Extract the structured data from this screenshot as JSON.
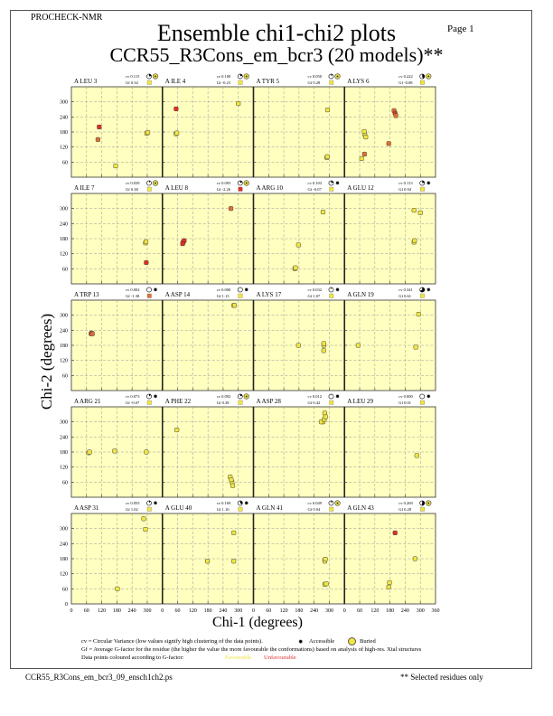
{
  "header": {
    "program": "PROCHECK-NMR",
    "page": "Page  1",
    "title": "Ensemble chi1-chi2 plots",
    "subtitle": "CCR55_R3Cons_em_bcr3 (20 models)**"
  },
  "colors": {
    "panel_bg": "#ffffc0",
    "favourable": "#f2e640",
    "unfavourable": "#e03020",
    "orange": "#e07030"
  },
  "chart_data": {
    "type": "scatter",
    "xlabel": "Chi-1 (degrees)",
    "ylabel": "Chi-2 (degrees)",
    "xlim": [
      0,
      360
    ],
    "ylim": [
      0,
      360
    ],
    "xticks": [
      "0",
      "60",
      "120",
      "180",
      "240",
      "300"
    ],
    "xtick_last": "360",
    "yticks": [
      "60",
      "120",
      "180",
      "240",
      "300"
    ],
    "ytick_zero": "0",
    "grid": true,
    "panels": [
      {
        "residue": "A LEU 3",
        "cv": "cv 0.115",
        "gf": "Gf 0.34",
        "access": "buried",
        "gfcolor": "fav",
        "points": [
          [
            110,
            200,
            "u"
          ],
          [
            105,
            150,
            "o"
          ],
          [
            175,
            45,
            "f"
          ],
          [
            298,
            175,
            "f"
          ],
          [
            302,
            178,
            "f"
          ]
        ]
      },
      {
        "residue": "A ILE 4",
        "cv": "cv 0.100",
        "gf": "Gf -0.23",
        "access": "buried",
        "gfcolor": "fav",
        "points": [
          [
            54,
            272,
            "u"
          ],
          [
            54,
            173,
            "f"
          ],
          [
            57,
            176,
            "f"
          ],
          [
            300,
            293,
            "f"
          ]
        ]
      },
      {
        "residue": "A TYR 5",
        "cv": "cv 0.050",
        "gf": "Gf 0.28",
        "access": "buried",
        "gfcolor": "fav",
        "points": [
          [
            293,
            268,
            "f"
          ],
          [
            290,
            78,
            "f"
          ],
          [
            292,
            82,
            "f"
          ]
        ]
      },
      {
        "residue": "A LYS 6",
        "cv": "cv 0.222",
        "gf": "Gf -0.08",
        "access": "buried",
        "gfcolor": "fav",
        "points": [
          [
            80,
            170,
            "f"
          ],
          [
            78,
            182,
            "f"
          ],
          [
            84,
            160,
            "f"
          ],
          [
            79,
            92,
            "o"
          ],
          [
            68,
            74,
            "f"
          ],
          [
            175,
            134,
            "o"
          ],
          [
            196,
            265,
            "o"
          ],
          [
            200,
            255,
            "u"
          ],
          [
            203,
            245,
            "o"
          ]
        ]
      },
      {
        "residue": "A ILE 7",
        "cv": "cv 0.039",
        "gf": "Gf 0.38",
        "access": "buried",
        "gfcolor": "fav",
        "points": [
          [
            293,
            163,
            "f"
          ],
          [
            295,
            168,
            "f"
          ],
          [
            296,
            85,
            "u"
          ]
        ]
      },
      {
        "residue": "A LEU 8",
        "cv": "cv 0.093",
        "gf": "Gf -2.26",
        "access": "buried",
        "gfcolor": "unfav",
        "points": [
          [
            82,
            166,
            "u"
          ],
          [
            86,
            172,
            "u"
          ],
          [
            80,
            160,
            "u"
          ],
          [
            271,
            300,
            "o"
          ]
        ]
      },
      {
        "residue": "A ARG 10",
        "cv": "cv 0.103",
        "gf": "Gf -0.07",
        "access": "accessible",
        "gfcolor": "fav",
        "points": [
          [
            178,
            155,
            "f"
          ],
          [
            164,
            60,
            "f"
          ],
          [
            166,
            64,
            "f"
          ],
          [
            275,
            286,
            "f"
          ]
        ]
      },
      {
        "residue": "A GLU 12",
        "cv": "cv 0.113",
        "gf": "Gf 0.94",
        "access": "accessible",
        "gfcolor": "fav",
        "points": [
          [
            275,
            166,
            "f"
          ],
          [
            277,
            172,
            "f"
          ],
          [
            275,
            293,
            "f"
          ],
          [
            300,
            283,
            "f"
          ]
        ]
      },
      {
        "residue": "A TRP 13",
        "cv": "cv 0.002",
        "gf": "Gf -1.38",
        "access": "accessible",
        "gfcolor": "orange",
        "points": [
          [
            78,
            226,
            "o"
          ],
          [
            80,
            229,
            "u"
          ],
          [
            83,
            226,
            "o"
          ]
        ]
      },
      {
        "residue": "A ASP 14",
        "cv": "cv 0.000",
        "gf": "Gf 1.13",
        "access": "accessible",
        "gfcolor": "fav",
        "points": [
          [
            282,
            339,
            "f"
          ],
          [
            285,
            339,
            "f"
          ]
        ]
      },
      {
        "residue": "A LYS 17",
        "cv": "cv 0.032",
        "gf": "Gf 1.07",
        "access": "accessible",
        "gfcolor": "fav",
        "points": [
          [
            178,
            180,
            "f"
          ],
          [
            278,
            180,
            "f"
          ],
          [
            278,
            187,
            "f"
          ],
          [
            278,
            159,
            "f"
          ]
        ]
      },
      {
        "residue": "A GLN 19",
        "cv": "cv 0.341",
        "gf": "Gf 0.61",
        "access": "accessible",
        "gfcolor": "fav",
        "points": [
          [
            54,
            180,
            "f"
          ],
          [
            282,
            173,
            "f"
          ],
          [
            293,
            304,
            "f"
          ]
        ]
      },
      {
        "residue": "A ARG 21",
        "cv": "cv 0.073",
        "gf": "Gf -0.07",
        "access": "accessible",
        "gfcolor": "fav",
        "points": [
          [
            68,
            177,
            "f"
          ],
          [
            72,
            180,
            "f"
          ],
          [
            171,
            184,
            "f"
          ],
          [
            296,
            180,
            "f"
          ]
        ]
      },
      {
        "residue": "A PHE 22",
        "cv": "cv 0.092",
        "gf": "Gf 0.38",
        "access": "buried",
        "gfcolor": "fav",
        "points": [
          [
            57,
            268,
            "f"
          ],
          [
            275,
            60,
            "f"
          ],
          [
            278,
            46,
            "f"
          ],
          [
            268,
            81,
            "f"
          ],
          [
            272,
            70,
            "f"
          ]
        ]
      },
      {
        "residue": "A ASP 28",
        "cv": "cv 0.012",
        "gf": "Gf 0.42",
        "access": "accessible",
        "gfcolor": "fav",
        "points": [
          [
            275,
            300,
            "f"
          ],
          [
            282,
            335,
            "f"
          ],
          [
            268,
            300,
            "f"
          ],
          [
            280,
            310,
            "f"
          ],
          [
            285,
            320,
            "f"
          ]
        ]
      },
      {
        "residue": "A LEU 29",
        "cv": "cv 0.000",
        "gf": "Gf 0.01",
        "access": "accessible",
        "gfcolor": "fav",
        "points": [
          [
            286,
            166,
            "f"
          ]
        ]
      },
      {
        "residue": "A ASP 31",
        "cv": "cv 0.055",
        "gf": "Gf 1.02",
        "access": "accessible",
        "gfcolor": "fav",
        "points": [
          [
            286,
            339,
            "f"
          ],
          [
            293,
            297,
            "f"
          ],
          [
            182,
            60,
            "f"
          ]
        ]
      },
      {
        "residue": "A GLU 40",
        "cv": "cv 0.169",
        "gf": "Gf 1.10",
        "access": "accessible",
        "gfcolor": "fav",
        "points": [
          [
            178,
            170,
            "f"
          ],
          [
            282,
            283,
            "f"
          ],
          [
            282,
            170,
            "f"
          ]
        ]
      },
      {
        "residue": "A GLN 41",
        "cv": "cv 0.049",
        "gf": "Gf 0.94",
        "access": "buried",
        "gfcolor": "fav",
        "points": [
          [
            282,
            170,
            "f"
          ],
          [
            284,
            178,
            "f"
          ],
          [
            282,
            78,
            "f"
          ],
          [
            288,
            80,
            "f"
          ]
        ]
      },
      {
        "residue": "A GLN 43",
        "cv": "cv 0.269",
        "gf": "Gf 0.28",
        "access": "buried",
        "gfcolor": "fav",
        "points": [
          [
            200,
            283,
            "u"
          ],
          [
            175,
            67,
            "f"
          ],
          [
            178,
            85,
            "f"
          ],
          [
            279,
            180,
            "f"
          ]
        ]
      }
    ]
  },
  "legend": {
    "cv_text": "cv = Circular Variance (low values signify high clustering of the data points).",
    "accessible": "Accessible",
    "buried": "Buried",
    "gf_text": "Gf = Average G-factor for the residue (the higher the value the more favourable the conformations) based on analysis of high-res. Xtal structures",
    "colour_text": "Data points coloured according to G-factor:",
    "favourable": "Favourable",
    "unfavourable": "Unfavourable"
  },
  "footer": {
    "filename": "CCR55_R3Cons_em_bcr3_09_ensch1ch2.ps",
    "note": "** Selected residues only"
  }
}
